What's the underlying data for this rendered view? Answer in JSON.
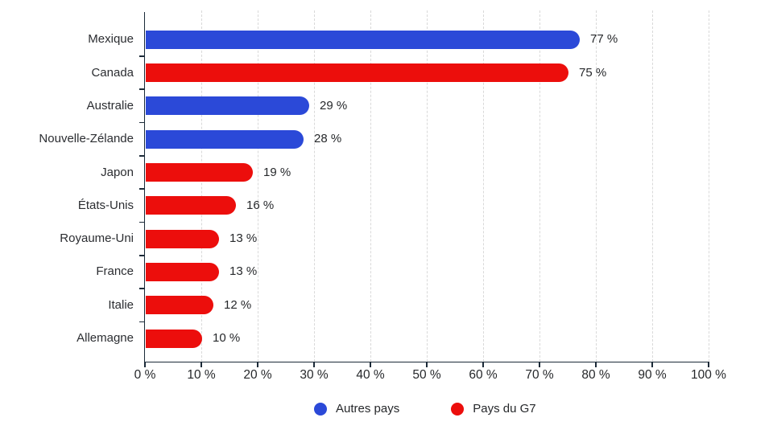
{
  "chart_data": {
    "type": "bar",
    "orientation": "horizontal",
    "title": "",
    "xlabel": "",
    "ylabel": "",
    "xlim": [
      0,
      100
    ],
    "x_tick_step": 10,
    "x_tick_labels": [
      "0 %",
      "10 %",
      "20 %",
      "30 %",
      "40 %",
      "50 %",
      "60 %",
      "70 %",
      "80 %",
      "90 %",
      "100 %"
    ],
    "categories": [
      "Mexique",
      "Canada",
      "Australie",
      "Nouvelle-Zélande",
      "Japon",
      "États-Unis",
      "Royaume-Uni",
      "France",
      "Italie",
      "Allemagne"
    ],
    "values": [
      77,
      75,
      29,
      28,
      19,
      16,
      13,
      13,
      12,
      10
    ],
    "value_labels": [
      "77 %",
      "75 %",
      "29 %",
      "28 %",
      "19 %",
      "16 %",
      "13 %",
      "13 %",
      "12 %",
      "10 %"
    ],
    "series_of_category": [
      "autres",
      "g7",
      "autres",
      "autres",
      "g7",
      "g7",
      "g7",
      "g7",
      "g7",
      "g7"
    ],
    "legend": {
      "position": "bottom",
      "items": [
        {
          "id": "autres",
          "label": "Autres pays",
          "color": "#2b49d8"
        },
        {
          "id": "g7",
          "label": "Pays du G7",
          "color": "#ec0e0c"
        }
      ]
    },
    "grid": "vertical-dashed",
    "colors": {
      "axis": "#1b2a38",
      "grid": "#d9d9d9",
      "text": "#26282b"
    }
  }
}
